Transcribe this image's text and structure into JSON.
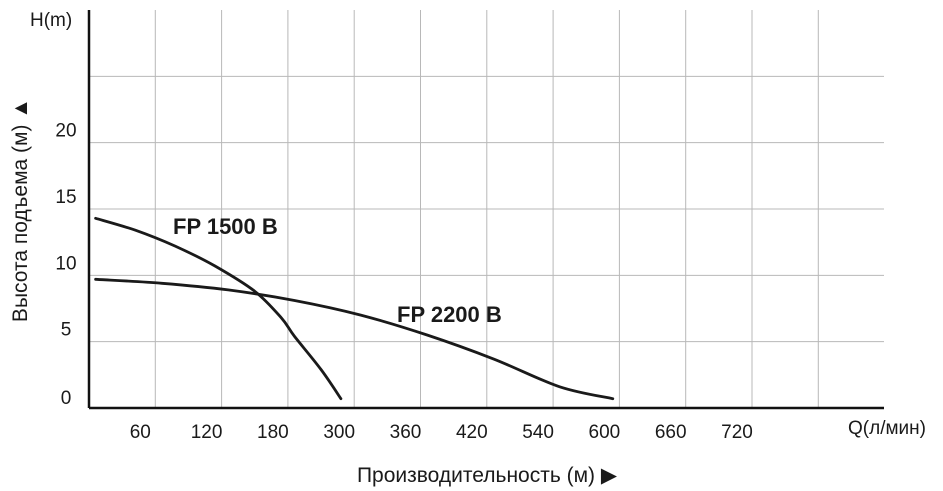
{
  "chart_data": {
    "type": "line",
    "y_unit_label": "H(m)",
    "x_unit_label": "Q(л/мин)",
    "ylabel": "Высота подъема (м) ▲",
    "xlabel": "Производительность (м) ▶",
    "x_tick_labels": [
      "60",
      "120",
      "180",
      "300",
      "360",
      "420",
      "540",
      "600",
      "660",
      "720"
    ],
    "y_tick_labels": [
      "0",
      "5",
      "10",
      "15",
      "20"
    ],
    "y_ticks": [
      0,
      5,
      10,
      15,
      20
    ],
    "ylim": [
      0,
      30
    ],
    "grid": true,
    "series": [
      {
        "name": "FP 1500 B",
        "x_pos": [
          0.1,
          0.7,
          1.3,
          1.9,
          2.5,
          2.9,
          3.1,
          3.5,
          3.8
        ],
        "y": [
          14.3,
          13.4,
          12.2,
          10.7,
          8.8,
          6.8,
          5.4,
          2.9,
          0.7
        ]
      },
      {
        "name": "FP 2200 B",
        "x_pos": [
          0.1,
          1.1,
          2.1,
          3.1,
          4.1,
          5.1,
          6.1,
          7.1,
          7.9
        ],
        "y": [
          9.7,
          9.4,
          8.9,
          8.1,
          7.0,
          5.5,
          3.7,
          1.6,
          0.7
        ]
      }
    ]
  }
}
